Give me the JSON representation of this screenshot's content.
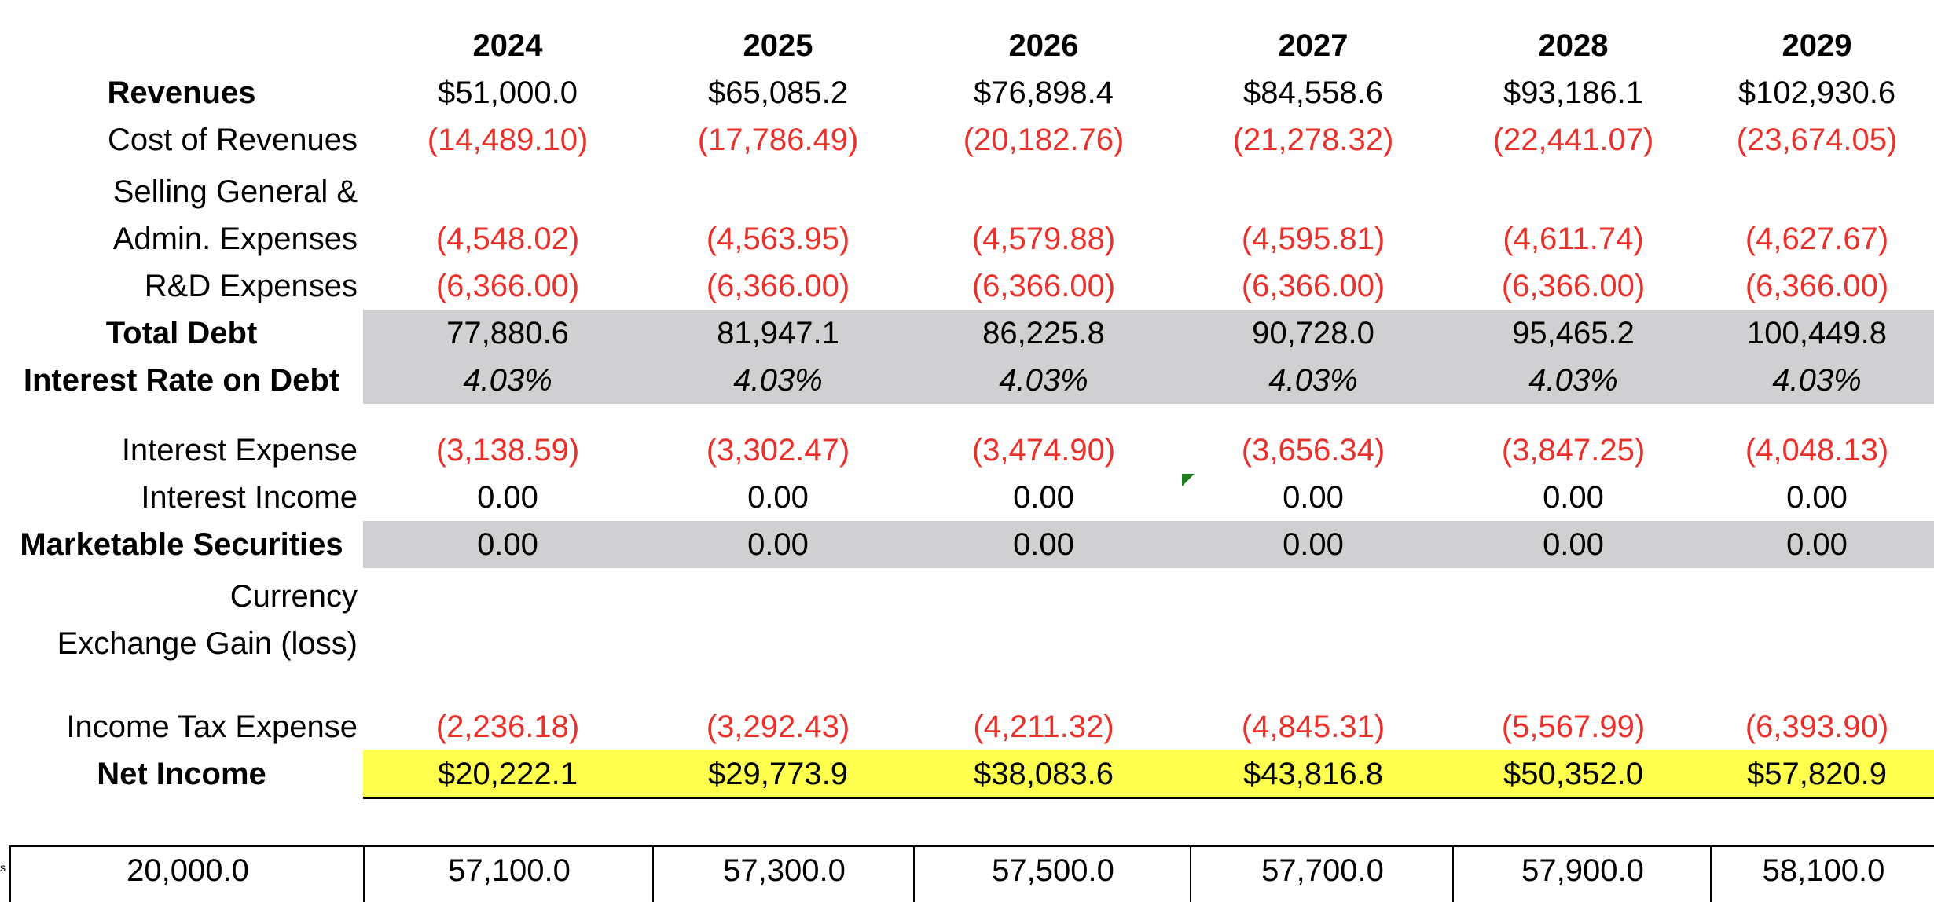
{
  "years": [
    "2024",
    "2025",
    "2026",
    "2027",
    "2028",
    "2029"
  ],
  "rows": {
    "revenues": {
      "label": "Revenues",
      "values": [
        "$51,000.0",
        "$65,085.2",
        "$76,898.4",
        "$84,558.6",
        "$93,186.1",
        "$102,930.6"
      ]
    },
    "cost_of_revenues": {
      "label": "Cost of Revenues",
      "values": [
        "(14,489.10)",
        "(17,786.49)",
        "(20,182.76)",
        "(21,278.32)",
        "(22,441.07)",
        "(23,674.05)"
      ]
    },
    "sga": {
      "label_line1": "Selling General &",
      "label_line2": "Admin. Expenses",
      "values": [
        "(4,548.02)",
        "(4,563.95)",
        "(4,579.88)",
        "(4,595.81)",
        "(4,611.74)",
        "(4,627.67)"
      ]
    },
    "rnd": {
      "label": "R&D Expenses",
      "values": [
        "(6,366.00)",
        "(6,366.00)",
        "(6,366.00)",
        "(6,366.00)",
        "(6,366.00)",
        "(6,366.00)"
      ]
    },
    "total_debt": {
      "label": "Total Debt",
      "values": [
        "77,880.6",
        "81,947.1",
        "86,225.8",
        "90,728.0",
        "95,465.2",
        "100,449.8"
      ]
    },
    "interest_rate": {
      "label": "Interest Rate on Debt",
      "values": [
        "4.03%",
        "4.03%",
        "4.03%",
        "4.03%",
        "4.03%",
        "4.03%"
      ]
    },
    "interest_expense": {
      "label": "Interest Expense",
      "values": [
        "(3,138.59)",
        "(3,302.47)",
        "(3,474.90)",
        "(3,656.34)",
        "(3,847.25)",
        "(4,048.13)"
      ]
    },
    "interest_income": {
      "label": "Interest Income",
      "values": [
        "0.00",
        "0.00",
        "0.00",
        "0.00",
        "0.00",
        "0.00"
      ]
    },
    "marketable_securities": {
      "label": "Marketable Securities",
      "values": [
        "0.00",
        "0.00",
        "0.00",
        "0.00",
        "0.00",
        "0.00"
      ]
    },
    "currency_exchange": {
      "label_line1": "Currency",
      "label_line2": "Exchange Gain (loss)"
    },
    "income_tax": {
      "label": "Income Tax Expense",
      "values": [
        "(2,236.18)",
        "(3,292.43)",
        "(4,211.32)",
        "(4,845.31)",
        "(5,567.99)",
        "(6,393.90)"
      ]
    },
    "net_income": {
      "label": "Net Income",
      "values": [
        "$20,222.1",
        "$29,773.9",
        "$38,083.6",
        "$43,816.8",
        "$50,352.0",
        "$57,820.9"
      ]
    }
  },
  "bottom_row": {
    "first": "20,000.0",
    "values": [
      "57,100.0",
      "57,300.0",
      "57,500.0",
      "57,700.0",
      "57,900.0",
      "58,100.0"
    ]
  },
  "edge_text": "s",
  "colors": {
    "negative": "#e8312b",
    "highlight_gray": "#d0cfd1",
    "highlight_yellow": "#ffff4d",
    "flag_green": "#1e7d1e"
  }
}
